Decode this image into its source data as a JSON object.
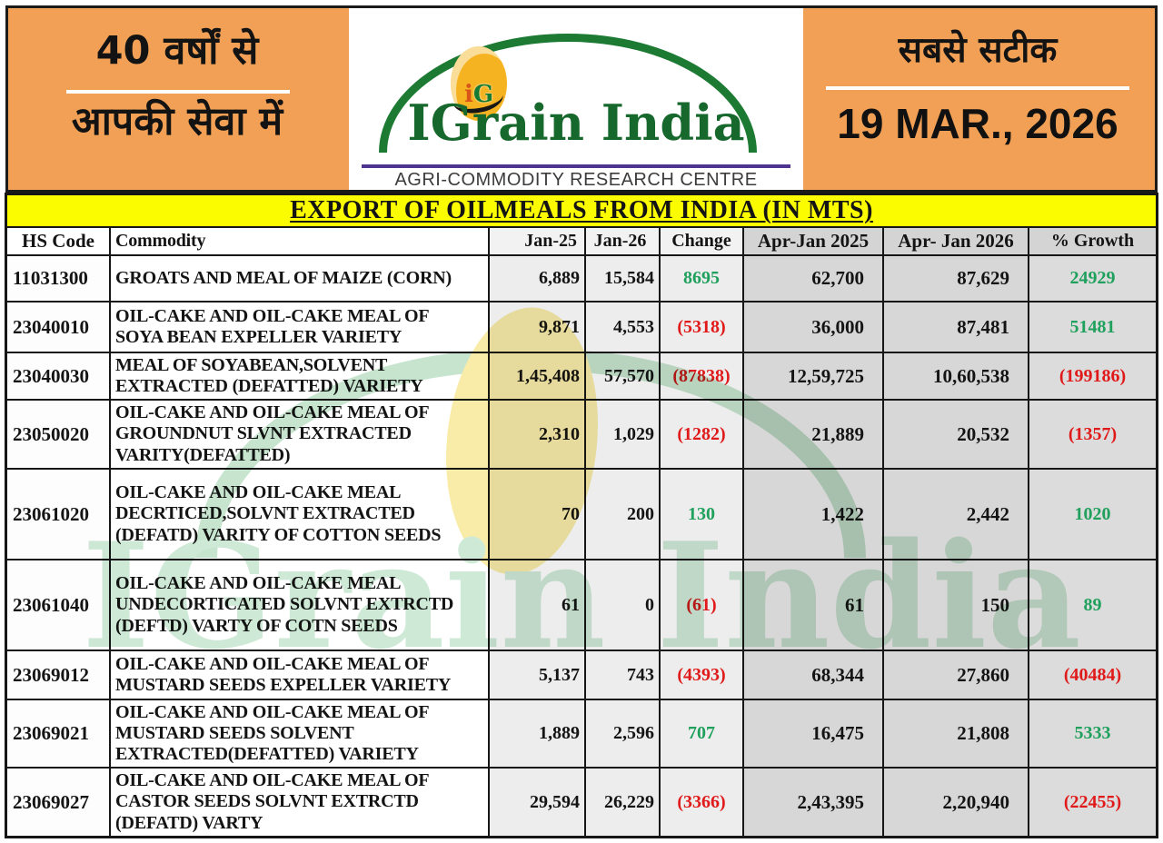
{
  "header": {
    "left": {
      "line1": "40 वर्षों से",
      "line2": "आपकी सेवा में"
    },
    "logo": {
      "brand": "IGrain India",
      "monogram_i": "i",
      "monogram_g": "G",
      "subtitle": "AGRI-COMMODITY RESEARCH CENTRE"
    },
    "right": {
      "line1": "सबसे सटीक",
      "date": "19 MAR., 2026"
    }
  },
  "table": {
    "title": "EXPORT OF OILMEALS FROM INDIA (IN MTS)",
    "columns": [
      "HS Code",
      "Commodity",
      "Jan-25",
      "Jan-26",
      "Change",
      "Apr-Jan 2025",
      "Apr- Jan 2026",
      "% Growth"
    ],
    "rows": [
      {
        "hs": "11031300",
        "commodity": "GROATS AND MEAL OF MAIZE (CORN)",
        "jan25": "6,889",
        "jan26": "15,584",
        "change": "8695",
        "apr25": "62,700",
        "apr26": "87,629",
        "growth": "24929"
      },
      {
        "hs": "23040010",
        "commodity": "OIL-CAKE AND OIL-CAKE MEAL OF\nSOYA BEAN  EXPELLER VARIETY",
        "jan25": "9,871",
        "jan26": "4,553",
        "change": "(5318)",
        "apr25": "36,000",
        "apr26": "87,481",
        "growth": "51481"
      },
      {
        "hs": "23040030",
        "commodity": "MEAL OF SOYABEAN,SOLVENT\nEXTRACTED (DEFATTED) VARIETY",
        "jan25": "1,45,408",
        "jan26": "57,570",
        "change": "(87838)",
        "apr25": "12,59,725",
        "apr26": "10,60,538",
        "growth": "(199186)"
      },
      {
        "hs": "23050020",
        "commodity": "OIL-CAKE AND OIL-CAKE MEAL OF\nGROUNDNUT SLVNT EXTRACTED\nVARITY(DEFATTED)",
        "jan25": "2,310",
        "jan26": "1,029",
        "change": "(1282)",
        "apr25": "21,889",
        "apr26": "20,532",
        "growth": "(1357)"
      },
      {
        "hs": "23061020",
        "commodity": "OIL-CAKE AND OIL-CAKE MEAL\nDECRTICED,SOLVNT EXTRACTED\n(DEFATD) VARITY OF COTTON SEEDS",
        "jan25": "70",
        "jan26": "200",
        "change": "130",
        "apr25": "1,422",
        "apr26": "2,442",
        "growth": "1020"
      },
      {
        "hs": "23061040",
        "commodity": "OIL-CAKE AND OIL-CAKE MEAL\nUNDECORTICATED SOLVNT EXTRCTD\n(DEFTD) VARTY OF COTN SEEDS",
        "jan25": "61",
        "jan26": "0",
        "change": "(61)",
        "apr25": "61",
        "apr26": "150",
        "growth": "89"
      },
      {
        "hs": "23069012",
        "commodity": "OIL-CAKE AND OIL-CAKE MEAL OF\nMUSTARD SEEDS EXPELLER VARIETY",
        "jan25": "5,137",
        "jan26": "743",
        "change": "(4393)",
        "apr25": "68,344",
        "apr26": "27,860",
        "growth": "(40484)"
      },
      {
        "hs": "23069021",
        "commodity": "OIL-CAKE AND OIL-CAKE MEAL OF\nMUSTARD SEEDS SOLVENT\nEXTRACTED(DEFATTED) VARIETY",
        "jan25": "1,889",
        "jan26": "2,596",
        "change": "707",
        "apr25": "16,475",
        "apr26": "21,808",
        "growth": "5333"
      },
      {
        "hs": "23069027",
        "commodity": "OIL-CAKE AND OIL-CAKE MEAL OF\nCASTOR SEEDS  SOLVNT EXTRCTD\n(DEFATD) VARTY",
        "jan25": "29,594",
        "jan26": "26,229",
        "change": "(3366)",
        "apr25": "2,43,395",
        "apr26": "2,20,940",
        "growth": "(22455)"
      }
    ]
  },
  "watermark": {
    "text": "IGrain India"
  },
  "colors": {
    "accent_orange": "#F1A055",
    "title_yellow": "#FCFC00",
    "brand_green": "#17682C",
    "positive_green": "#1FA05C",
    "negative_red": "#E01A1A",
    "purple_rule": "#4F3390",
    "seed_gold": "#F5B321"
  }
}
